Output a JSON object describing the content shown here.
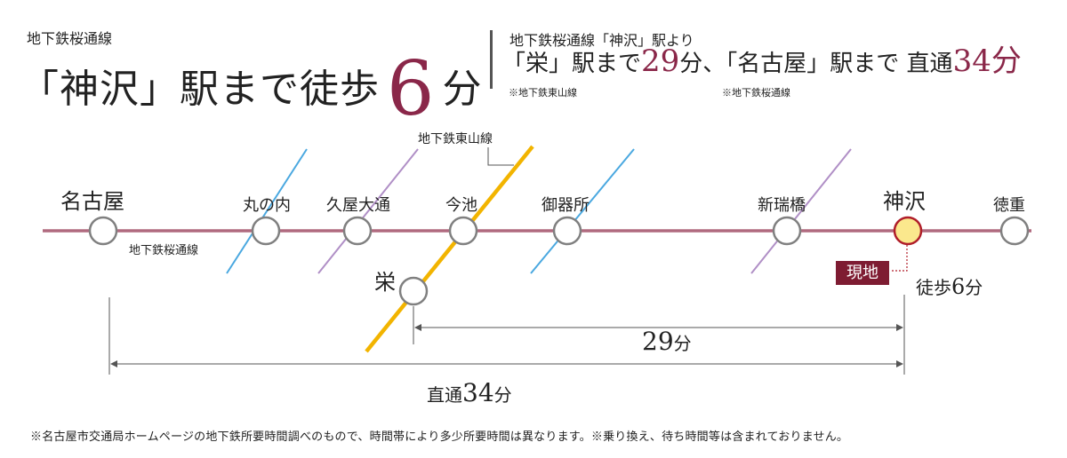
{
  "header": {
    "line_name": "地下鉄桜通線",
    "headline_pre": "「神沢」駅まで徒歩",
    "headline_number": "6",
    "headline_unit": "分",
    "right_from": "地下鉄桜通線「神沢」駅より",
    "sakae_text": "「栄」駅まで",
    "sakae_minutes": "29",
    "sakae_unit": "分、",
    "nagoya_text": "「名古屋」駅まで 直通",
    "nagoya_minutes": "34",
    "nagoya_unit": "分",
    "note_sakae": "※地下鉄東山線",
    "note_nagoya": "※地下鉄桜通線"
  },
  "diagram": {
    "higashiyama_label": "地下鉄東山線",
    "sakuradori_label": "地下鉄桜通線",
    "stations": {
      "nagoya": "名古屋",
      "marunouchi": "丸の内",
      "hisaya": "久屋大通",
      "imaike": "今池",
      "gokiso": "御器所",
      "shinmizuhashi": "新瑞橋",
      "kamisawa": "神沢",
      "tokushige": "徳重",
      "sakae": "栄"
    },
    "current_badge": "現地",
    "walk_text_pre": "徒歩",
    "walk_minutes": "6",
    "walk_unit": "分",
    "dur_sakae_minutes": "29",
    "dur_sakae_unit": "分",
    "dur_nagoya_pre": "直通",
    "dur_nagoya_minutes": "34",
    "dur_nagoya_unit": "分",
    "colors": {
      "sakuradori": "#b06a7f",
      "higashiyama": "#f2b400",
      "other_blue": "#4aa8e0",
      "other_purple": "#b08fc6",
      "current_fill": "#fbe88d",
      "current_stroke": "#b01e2a",
      "accent": "#8a2749"
    }
  },
  "footnote": "※名古屋市交通局ホームページの地下鉄所要時間調べのもので、時間帯により多少所要時間は異なります。※乗り換え、待ち時間等は含まれておりません。"
}
